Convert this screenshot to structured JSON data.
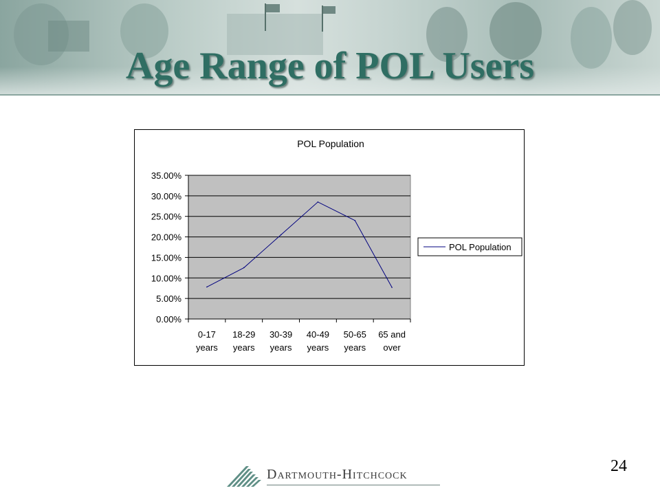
{
  "slide": {
    "title": "Age Range of POL Users",
    "page_number": "24",
    "logo_text": "Dartmouth-Hitchcock",
    "theme_color": "#2f6e63"
  },
  "chart_data": {
    "type": "line",
    "title": "POL Population",
    "categories": [
      "0-17 years",
      "18-29 years",
      "30-39 years",
      "40-49 years",
      "50-65 years",
      "65 and over"
    ],
    "category_lines": [
      [
        "0-17",
        "years"
      ],
      [
        "18-29",
        "years"
      ],
      [
        "30-39",
        "years"
      ],
      [
        "40-49",
        "years"
      ],
      [
        "50-65",
        "years"
      ],
      [
        "65 and",
        "over"
      ]
    ],
    "series": [
      {
        "name": "POL Population",
        "values": [
          7.8,
          12.5,
          20.5,
          28.5,
          24.0,
          7.7
        ],
        "color": "#00007f"
      }
    ],
    "ylim": [
      0,
      35
    ],
    "yticks": [
      "0.00%",
      "5.00%",
      "10.00%",
      "15.00%",
      "20.00%",
      "25.00%",
      "30.00%",
      "35.00%"
    ],
    "xlabel": "",
    "ylabel": "",
    "grid": true,
    "plot_background": "#c0c0c0",
    "legend_position": "right"
  }
}
